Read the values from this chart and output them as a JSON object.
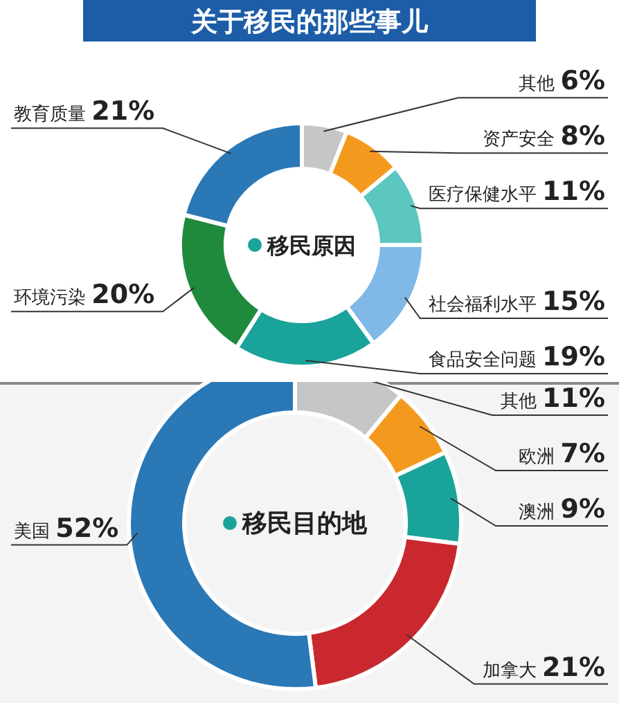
{
  "chart_data": [
    {
      "type": "donut",
      "title": "关于移民的那些事儿",
      "annotations": [
        "移民原因"
      ],
      "categories": [
        "其他",
        "资产安全",
        "医疗保健水平",
        "社会福利水平",
        "食品安全问题",
        "环境污染",
        "教育质量"
      ],
      "values": [
        6,
        8,
        11,
        15,
        19,
        20,
        21
      ],
      "value_labels": [
        "6%",
        "8%",
        "11%",
        "15%",
        "19%",
        "20%",
        "21%"
      ],
      "colors": [
        "#c6c6c6",
        "#f39a1e",
        "#5cc6c0",
        "#80b8e8",
        "#1aa39a",
        "#1f8a3c",
        "#2a78b6"
      ]
    },
    {
      "type": "donut",
      "annotations": [
        "移民目的地"
      ],
      "categories": [
        "其他",
        "欧洲",
        "澳洲",
        "加拿大",
        "美国"
      ],
      "values": [
        11,
        7,
        9,
        21,
        52
      ],
      "value_labels": [
        "11%",
        "7%",
        "9%",
        "21%",
        "52%"
      ],
      "colors": [
        "#c6c6c6",
        "#f39a1e",
        "#1aa39a",
        "#c8282e",
        "#2a78b6"
      ]
    }
  ]
}
